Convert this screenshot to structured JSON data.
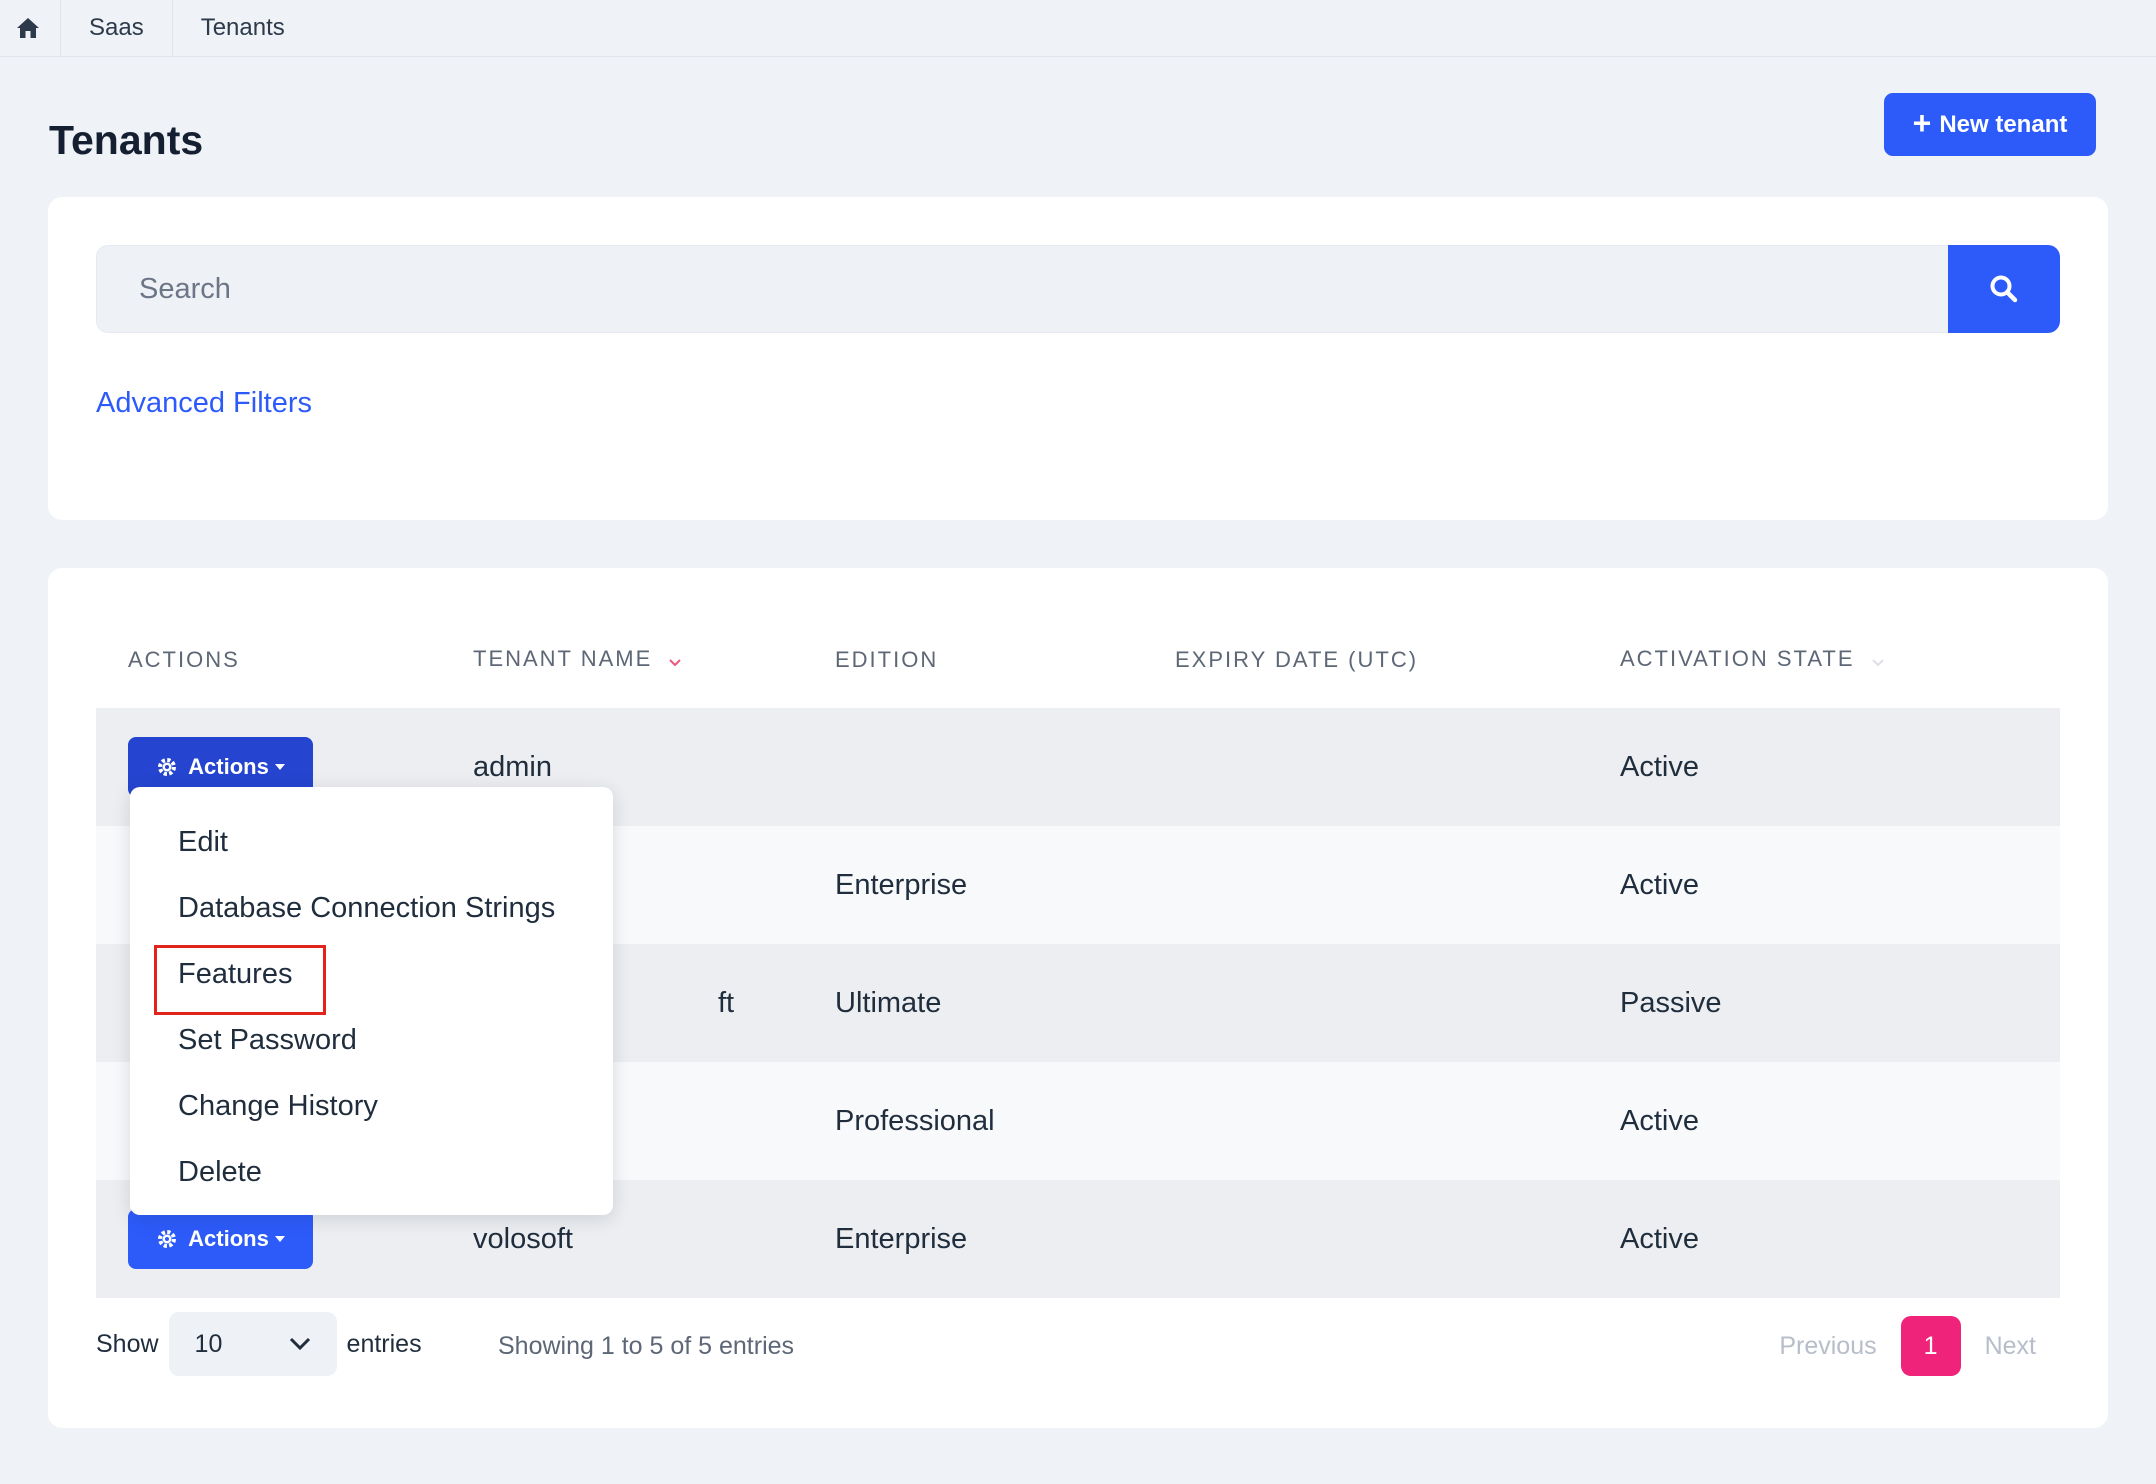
{
  "breadcrumb": {
    "items": [
      "Saas",
      "Tenants"
    ]
  },
  "page": {
    "title": "Tenants",
    "new_button": "New tenant"
  },
  "search": {
    "placeholder": "Search",
    "advanced_filters": "Advanced Filters"
  },
  "table": {
    "columns": [
      "ACTIONS",
      "TENANT NAME",
      "EDITION",
      "EXPIRY DATE (UTC)",
      "ACTIVATION STATE"
    ],
    "actions_label": "Actions",
    "rows": [
      {
        "name": "admin",
        "edition": "",
        "expiry": "",
        "state": "Active"
      },
      {
        "name": "",
        "edition": "Enterprise",
        "expiry": "",
        "state": "Active"
      },
      {
        "name": "ft",
        "edition": "Ultimate",
        "expiry": "",
        "state": "Passive"
      },
      {
        "name": "",
        "edition": "Professional",
        "expiry": "",
        "state": "Active"
      },
      {
        "name": "volosoft",
        "edition": "Enterprise",
        "expiry": "",
        "state": "Active"
      }
    ]
  },
  "dropdown": {
    "items": [
      "Edit",
      "Database Connection Strings",
      "Features",
      "Set Password",
      "Change History",
      "Delete"
    ],
    "highlighted": "Features"
  },
  "footer": {
    "show_label": "Show",
    "page_size": "10",
    "entries_label": "entries",
    "summary": "Showing 1 to 5 of 5 entries",
    "previous": "Previous",
    "current_page": "1",
    "next": "Next"
  },
  "colors": {
    "primary": "#2d5bfa",
    "pager_active": "#f0237a",
    "highlight": "#e2231a"
  }
}
